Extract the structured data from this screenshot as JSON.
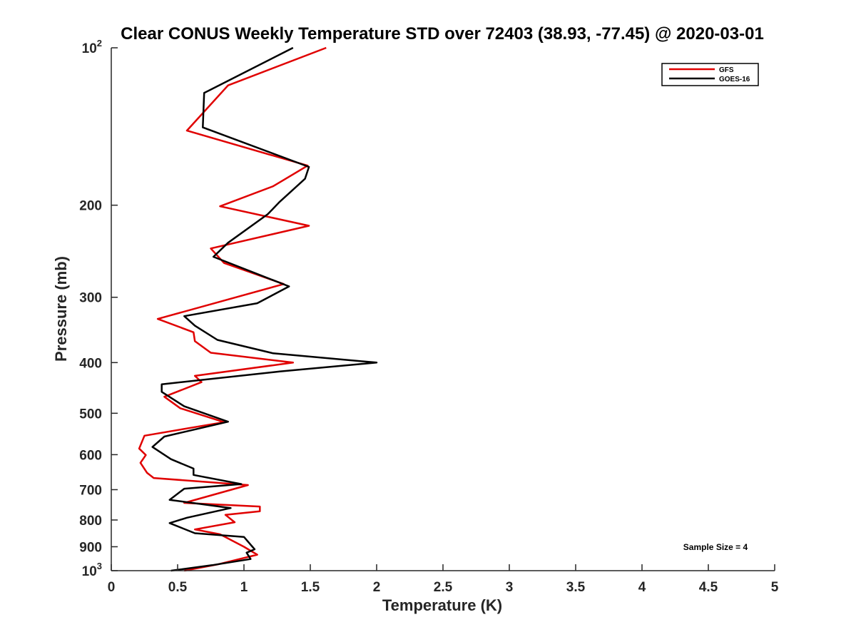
{
  "chart_data": {
    "type": "line",
    "title": "Clear CONUS Weekly Temperature STD over 72403 (38.93, -77.45) @ 2020-03-01",
    "xlabel": "Temperature (K)",
    "ylabel": "Pressure (mb)",
    "xlim": [
      0,
      5
    ],
    "ylim": [
      100,
      1000
    ],
    "y_scale": "log",
    "y_reversed": true,
    "grid": false,
    "legend_position": "top-right",
    "x_ticks": [
      "0",
      "0.5",
      "1",
      "1.5",
      "2",
      "2.5",
      "3",
      "3.5",
      "4",
      "4.5",
      "5"
    ],
    "y_ticks": [
      {
        "value": 100,
        "label": "10",
        "exp": "2"
      },
      {
        "value": 200,
        "label": "200",
        "exp": ""
      },
      {
        "value": 300,
        "label": "300",
        "exp": ""
      },
      {
        "value": 400,
        "label": "400",
        "exp": ""
      },
      {
        "value": 500,
        "label": "500",
        "exp": ""
      },
      {
        "value": 600,
        "label": "600",
        "exp": ""
      },
      {
        "value": 700,
        "label": "700",
        "exp": ""
      },
      {
        "value": 800,
        "label": "800",
        "exp": ""
      },
      {
        "value": 900,
        "label": "900",
        "exp": ""
      },
      {
        "value": 1000,
        "label": "10",
        "exp": "3"
      }
    ],
    "annotation": "Sample Size = 4",
    "series": [
      {
        "name": "GFS",
        "color": "#e00000",
        "points": [
          [
            1.62,
            100
          ],
          [
            0.88,
            118
          ],
          [
            0.57,
            144
          ],
          [
            1.48,
            168
          ],
          [
            1.22,
            184
          ],
          [
            0.82,
            201
          ],
          [
            1.49,
            219
          ],
          [
            0.75,
            242
          ],
          [
            0.85,
            258
          ],
          [
            1.3,
            283
          ],
          [
            0.35,
            330
          ],
          [
            0.62,
            350
          ],
          [
            0.63,
            364
          ],
          [
            0.75,
            383
          ],
          [
            1.37,
            400
          ],
          [
            0.63,
            424
          ],
          [
            0.68,
            436
          ],
          [
            0.4,
            465
          ],
          [
            0.52,
            489
          ],
          [
            0.85,
            520
          ],
          [
            0.25,
            552
          ],
          [
            0.21,
            584
          ],
          [
            0.26,
            601
          ],
          [
            0.22,
            622
          ],
          [
            0.27,
            650
          ],
          [
            0.32,
            665
          ],
          [
            1.03,
            686
          ],
          [
            0.55,
            742
          ],
          [
            1.12,
            754
          ],
          [
            1.12,
            770
          ],
          [
            0.86,
            782
          ],
          [
            0.93,
            808
          ],
          [
            0.63,
            834
          ],
          [
            0.82,
            852
          ],
          [
            1.0,
            900
          ],
          [
            1.1,
            932
          ],
          [
            0.8,
            973
          ],
          [
            0.55,
            1000
          ]
        ]
      },
      {
        "name": "GOES-16",
        "color": "#000000",
        "points": [
          [
            1.37,
            100
          ],
          [
            0.7,
            122
          ],
          [
            0.69,
            142
          ],
          [
            1.49,
            169
          ],
          [
            1.46,
            178
          ],
          [
            1.27,
            197
          ],
          [
            1.18,
            208
          ],
          [
            0.88,
            236
          ],
          [
            0.77,
            251
          ],
          [
            1.34,
            286
          ],
          [
            1.1,
            308
          ],
          [
            0.55,
            326
          ],
          [
            0.63,
            340
          ],
          [
            0.8,
            362
          ],
          [
            1.22,
            384
          ],
          [
            2.0,
            400
          ],
          [
            1.27,
            416
          ],
          [
            0.38,
            440
          ],
          [
            0.38,
            455
          ],
          [
            0.55,
            485
          ],
          [
            0.88,
            519
          ],
          [
            0.4,
            554
          ],
          [
            0.31,
            580
          ],
          [
            0.45,
            612
          ],
          [
            0.62,
            638
          ],
          [
            0.62,
            656
          ],
          [
            0.98,
            683
          ],
          [
            0.55,
            697
          ],
          [
            0.44,
            732
          ],
          [
            0.9,
            759
          ],
          [
            0.57,
            792
          ],
          [
            0.44,
            811
          ],
          [
            0.63,
            848
          ],
          [
            1.0,
            862
          ],
          [
            1.08,
            910
          ],
          [
            1.02,
            924
          ],
          [
            1.05,
            950
          ],
          [
            0.76,
            976
          ],
          [
            0.45,
            1000
          ]
        ]
      }
    ]
  }
}
